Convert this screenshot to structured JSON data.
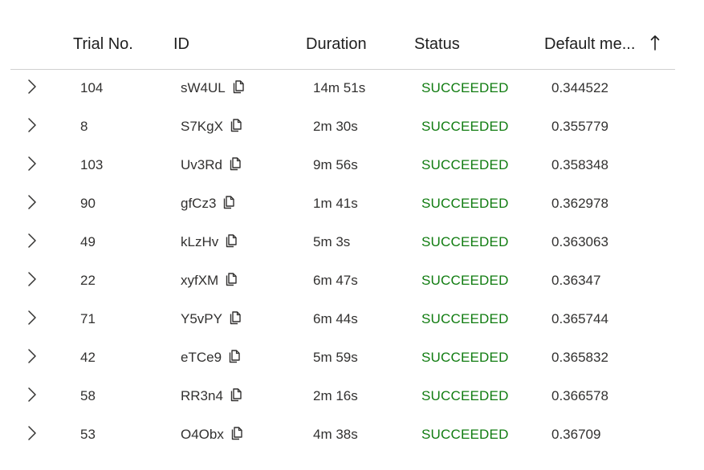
{
  "columns": {
    "trial_no": "Trial No.",
    "id": "ID",
    "duration": "Duration",
    "status": "Status",
    "default_metric": "Default me...",
    "sort_direction": "ascending"
  },
  "icons": {
    "expand": "chevron-right-icon",
    "copy": "copy-icon",
    "sort": "arrow-up-icon"
  },
  "colors": {
    "status_succeeded": "#107c10"
  },
  "rows": [
    {
      "trial_no": "104",
      "id": "sW4UL",
      "duration": "14m 51s",
      "status": "SUCCEEDED",
      "metric": "0.344522"
    },
    {
      "trial_no": "8",
      "id": "S7KgX",
      "duration": "2m 30s",
      "status": "SUCCEEDED",
      "metric": "0.355779"
    },
    {
      "trial_no": "103",
      "id": "Uv3Rd",
      "duration": "9m 56s",
      "status": "SUCCEEDED",
      "metric": "0.358348"
    },
    {
      "trial_no": "90",
      "id": "gfCz3",
      "duration": "1m 41s",
      "status": "SUCCEEDED",
      "metric": "0.362978"
    },
    {
      "trial_no": "49",
      "id": "kLzHv",
      "duration": "5m 3s",
      "status": "SUCCEEDED",
      "metric": "0.363063"
    },
    {
      "trial_no": "22",
      "id": "xyfXM",
      "duration": "6m 47s",
      "status": "SUCCEEDED",
      "metric": "0.36347"
    },
    {
      "trial_no": "71",
      "id": "Y5vPY",
      "duration": "6m 44s",
      "status": "SUCCEEDED",
      "metric": "0.365744"
    },
    {
      "trial_no": "42",
      "id": "eTCe9",
      "duration": "5m 59s",
      "status": "SUCCEEDED",
      "metric": "0.365832"
    },
    {
      "trial_no": "58",
      "id": "RR3n4",
      "duration": "2m 16s",
      "status": "SUCCEEDED",
      "metric": "0.366578"
    },
    {
      "trial_no": "53",
      "id": "O4Obx",
      "duration": "4m 38s",
      "status": "SUCCEEDED",
      "metric": "0.36709"
    }
  ]
}
